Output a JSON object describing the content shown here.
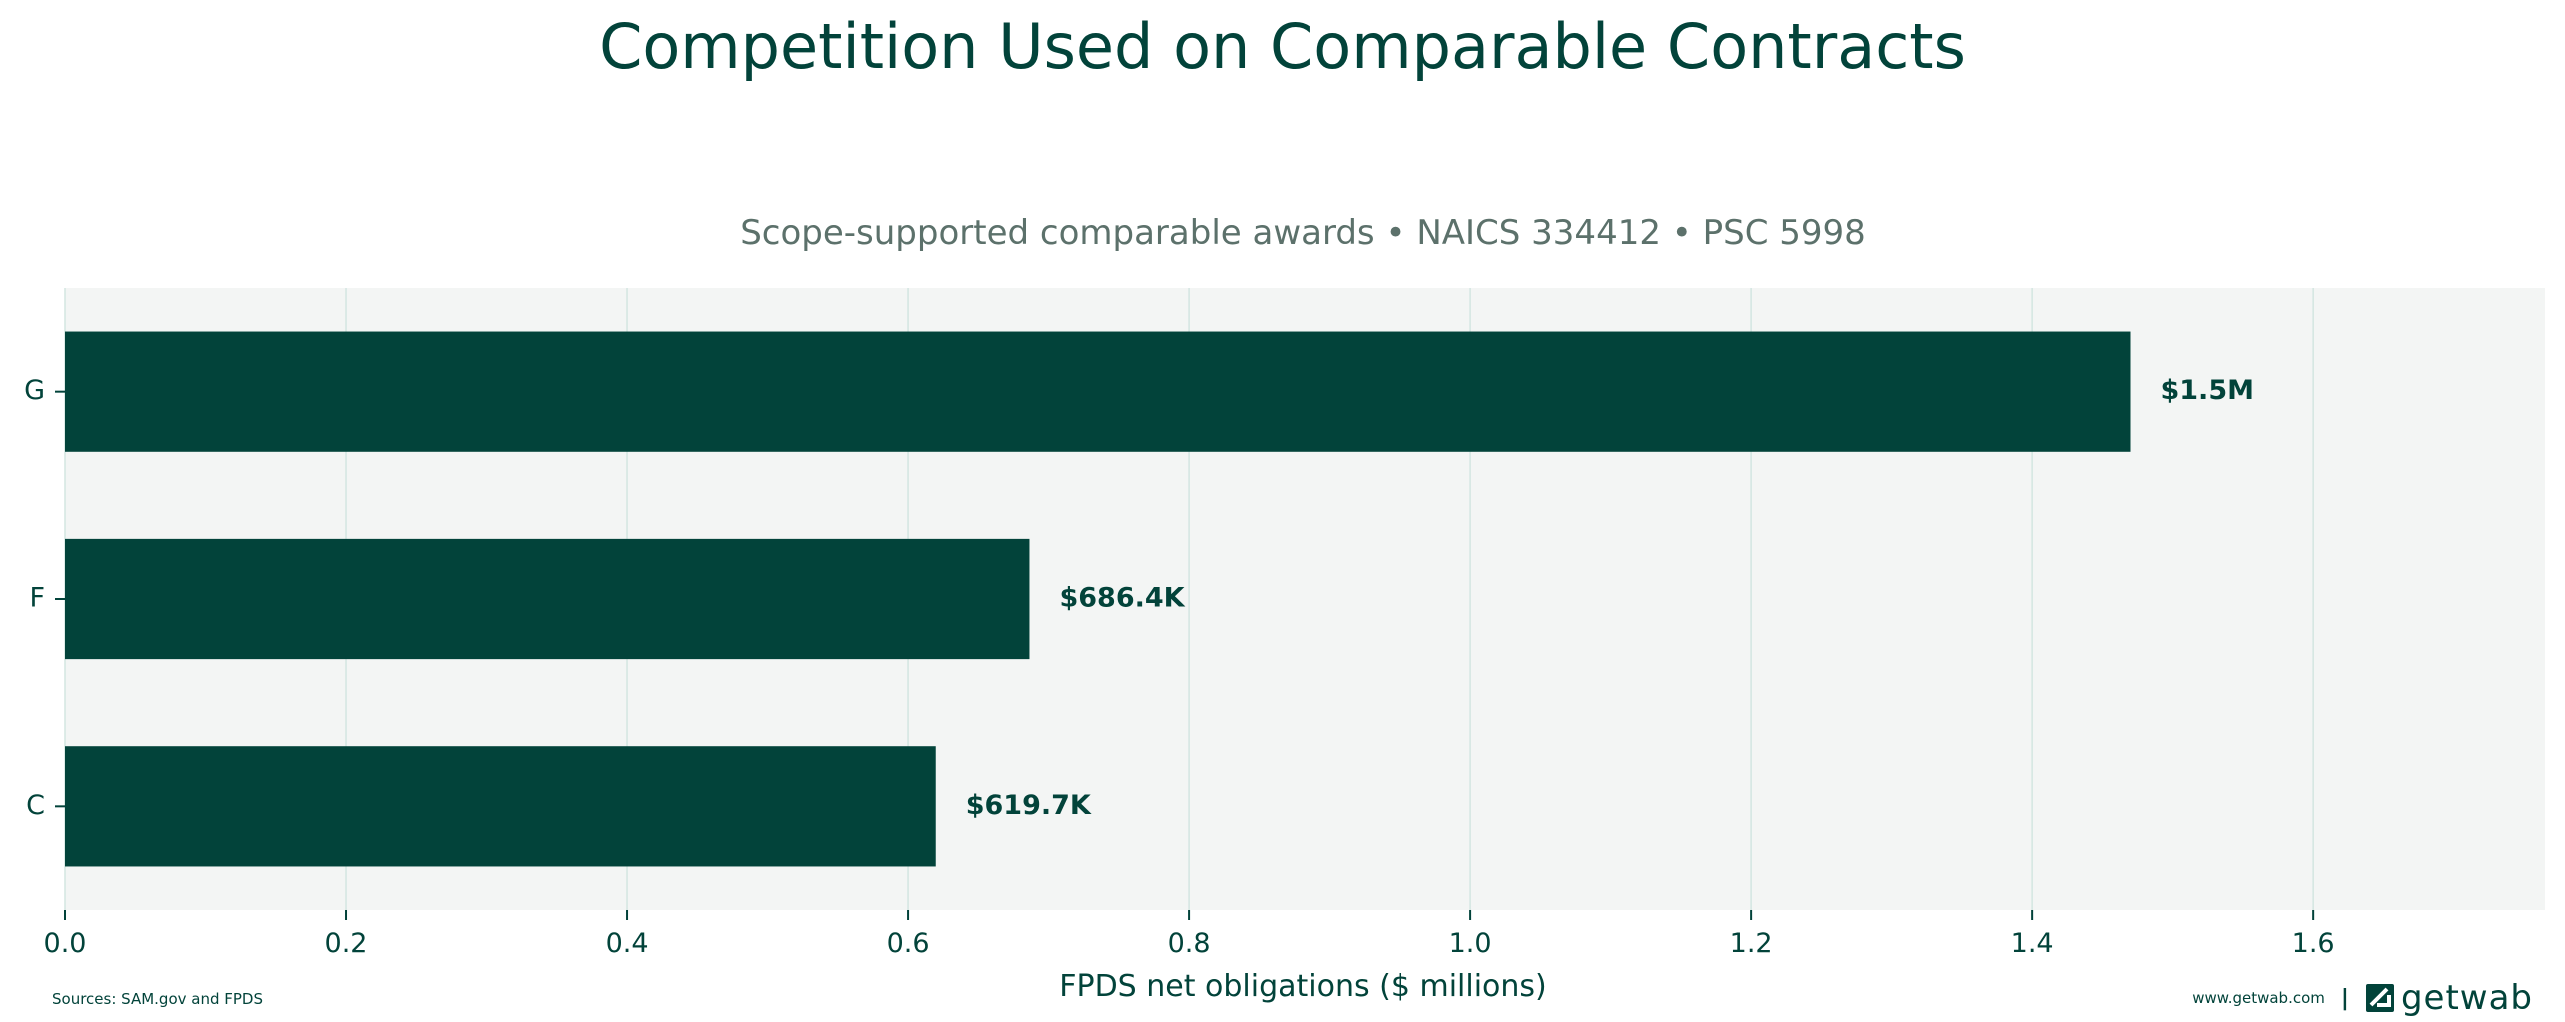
{
  "title": "Competition Used on Comparable Contracts",
  "chart_data": {
    "type": "bar",
    "orientation": "horizontal",
    "subtitle": "Scope-supported comparable awards • NAICS 334412 • PSC 5998",
    "xlabel": "FPDS net obligations ($ millions)",
    "ylabel": "",
    "categories": [
      "G",
      "F",
      "C"
    ],
    "values": [
      1.47,
      0.6864,
      0.6197
    ],
    "data_labels": [
      "$1.5M",
      "$686.4K",
      "$619.7K"
    ],
    "xlim": [
      0,
      1.765
    ],
    "xticks": [
      0.0,
      0.2,
      0.4,
      0.6,
      0.8,
      1.0,
      1.2,
      1.4,
      1.6
    ],
    "xtick_labels": [
      "0.0",
      "0.2",
      "0.4",
      "0.6",
      "0.8",
      "1.0",
      "1.2",
      "1.4",
      "1.6"
    ],
    "grid": "vertical",
    "colors": {
      "bar": "#02433a",
      "plot_bg": "#f3f5f4",
      "grid": "#d3e6e1",
      "subtitle": "#5c716b"
    }
  },
  "footer": {
    "sources": "Sources: SAM.gov and FPDS",
    "url": "www.getwab.com",
    "separator": "|",
    "brand": "getwab",
    "brand_icon": "getwab-logo-icon"
  }
}
